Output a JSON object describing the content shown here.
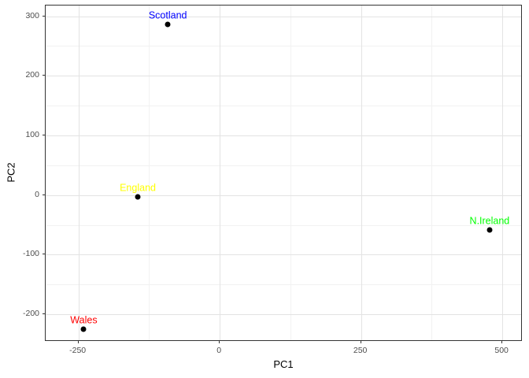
{
  "chart_data": {
    "type": "scatter",
    "title": "",
    "xlabel": "PC1",
    "ylabel": "PC2",
    "xlim": [
      -308,
      536
    ],
    "ylim": [
      -246,
      318
    ],
    "x_ticks": [
      "-250",
      "0",
      "250",
      "500"
    ],
    "x_tick_values": [
      -250,
      0,
      250,
      500
    ],
    "y_ticks": [
      "-200",
      "-100",
      "0",
      "100",
      "200",
      "300"
    ],
    "y_tick_values": [
      -200,
      -100,
      0,
      100,
      200,
      300
    ],
    "x_minor_values": [
      -125,
      125,
      375
    ],
    "y_minor_values": [
      -150,
      -50,
      50,
      150,
      250
    ],
    "grid": "major-and-minor",
    "legend": "none",
    "point_color": "#000000",
    "points": [
      {
        "label": "Scotland",
        "x": -91.87,
        "y": 286.08,
        "label_color": "#0000ff"
      },
      {
        "label": "England",
        "x": -144.99,
        "y": -2.53,
        "label_color": "#ffff00"
      },
      {
        "label": "N.Ireland",
        "x": 477.39,
        "y": -58.9,
        "label_color": "#00ff00"
      },
      {
        "label": "Wales",
        "x": -240.52,
        "y": -224.65,
        "label_color": "#ff0000"
      }
    ]
  },
  "colors": {
    "panel_border": "#333333",
    "grid_major": "#e3e3e3",
    "grid_minor": "#f2f2f2",
    "tick_label": "#4d4d4d",
    "axis_title": "#000000",
    "background": "#ffffff"
  }
}
